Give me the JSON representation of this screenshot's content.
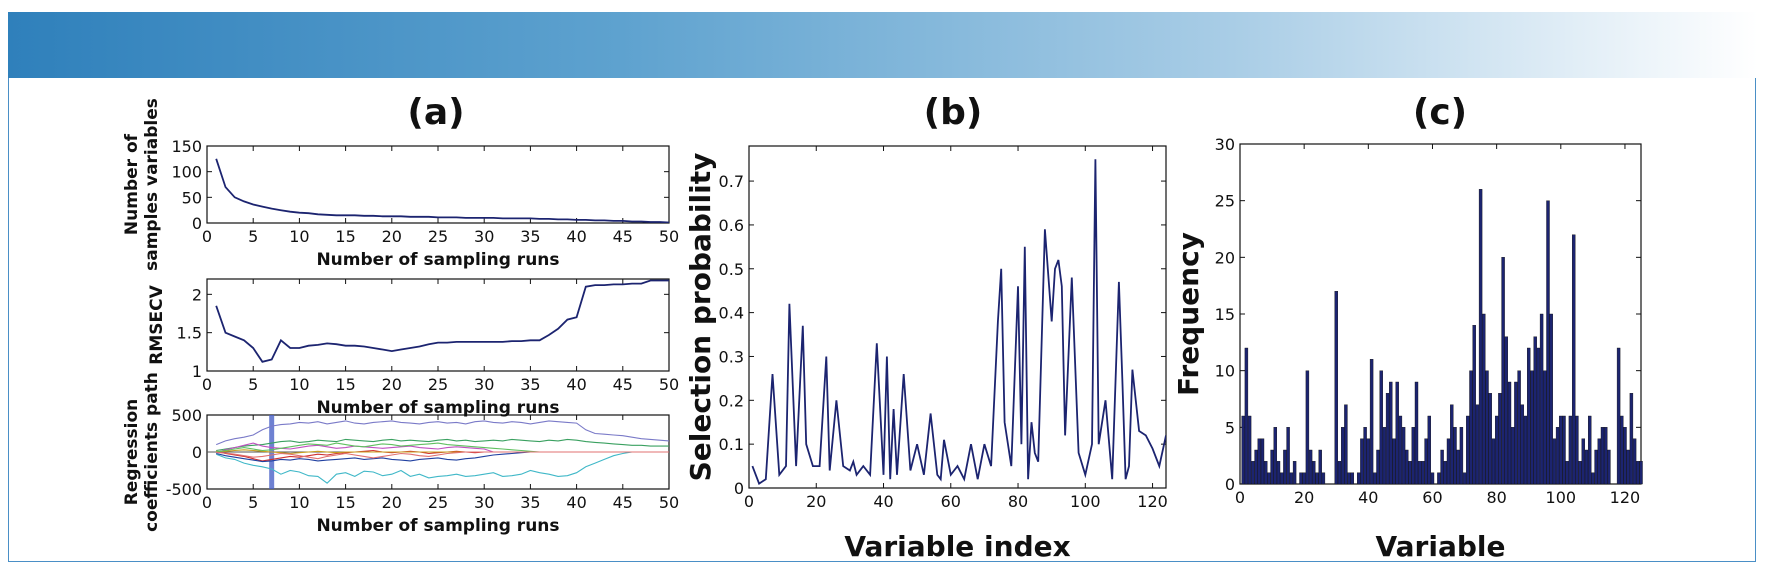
{
  "chart_data": [
    {
      "id": "a1",
      "panel_label": "(a)",
      "type": "line",
      "title": "",
      "xlabel": "Number of sampling runs",
      "ylabel": [
        "Number of",
        "samples variables"
      ],
      "xlim": [
        0,
        50
      ],
      "ylim": [
        0,
        150
      ],
      "xticks": [
        0,
        5,
        10,
        15,
        20,
        25,
        30,
        35,
        40,
        45,
        50
      ],
      "yticks": [
        0,
        50,
        100,
        150
      ],
      "x": [
        1,
        2,
        3,
        4,
        5,
        6,
        7,
        8,
        9,
        10,
        11,
        12,
        13,
        14,
        15,
        16,
        17,
        18,
        19,
        20,
        21,
        22,
        23,
        24,
        25,
        26,
        27,
        28,
        29,
        30,
        31,
        32,
        33,
        34,
        35,
        36,
        37,
        38,
        39,
        40,
        41,
        42,
        43,
        44,
        45,
        46,
        47,
        48,
        49,
        50
      ],
      "values": [
        125,
        70,
        50,
        42,
        36,
        32,
        28,
        25,
        22,
        20,
        19,
        17,
        16,
        15,
        15,
        15,
        14,
        14,
        13,
        13,
        13,
        12,
        12,
        12,
        11,
        11,
        11,
        10,
        10,
        10,
        10,
        9,
        9,
        9,
        9,
        8,
        8,
        7,
        7,
        6,
        6,
        5,
        5,
        4,
        4,
        3,
        3,
        2,
        2,
        1
      ]
    },
    {
      "id": "a2",
      "type": "line",
      "xlabel": "Number of sampling runs",
      "ylabel": [
        "RMSECV"
      ],
      "xlim": [
        0,
        50
      ],
      "ylim": [
        1,
        2.2
      ],
      "xticks": [
        0,
        5,
        10,
        15,
        20,
        25,
        30,
        35,
        40,
        45,
        50
      ],
      "yticks": [
        1,
        1.5,
        2
      ],
      "x": [
        1,
        2,
        3,
        4,
        5,
        6,
        7,
        8,
        9,
        10,
        11,
        12,
        13,
        14,
        15,
        16,
        17,
        18,
        19,
        20,
        21,
        22,
        23,
        24,
        25,
        26,
        27,
        28,
        29,
        30,
        31,
        32,
        33,
        34,
        35,
        36,
        37,
        38,
        39,
        40,
        41,
        42,
        43,
        44,
        45,
        46,
        47,
        48,
        49,
        50
      ],
      "values": [
        1.85,
        1.5,
        1.45,
        1.4,
        1.3,
        1.12,
        1.15,
        1.4,
        1.3,
        1.3,
        1.33,
        1.34,
        1.36,
        1.35,
        1.33,
        1.33,
        1.32,
        1.3,
        1.28,
        1.26,
        1.28,
        1.3,
        1.32,
        1.35,
        1.37,
        1.37,
        1.38,
        1.38,
        1.38,
        1.38,
        1.38,
        1.38,
        1.39,
        1.39,
        1.4,
        1.4,
        1.47,
        1.55,
        1.67,
        1.7,
        2.1,
        2.12,
        2.12,
        2.13,
        2.13,
        2.14,
        2.14,
        2.18,
        2.18,
        2.18
      ]
    },
    {
      "id": "a3",
      "type": "line",
      "xlabel": "Number of sampling runs",
      "ylabel": [
        "Regression",
        "coefficients path"
      ],
      "xlim": [
        0,
        50
      ],
      "ylim": [
        -500,
        500
      ],
      "xticks": [
        0,
        5,
        10,
        15,
        20,
        25,
        30,
        35,
        40,
        45,
        50
      ],
      "yticks": [
        -500,
        0,
        500
      ],
      "annotation": "vertical marker at x=7",
      "series": [
        {
          "name": "s1",
          "color": "#7a7ac8",
          "values": [
            100,
            150,
            180,
            200,
            230,
            300,
            350,
            370,
            380,
            400,
            390,
            410,
            380,
            400,
            420,
            390,
            380,
            400,
            410,
            420,
            400,
            390,
            380,
            400,
            410,
            390,
            400,
            380,
            410,
            420,
            400,
            390,
            410,
            400,
            380,
            400,
            420,
            410,
            400,
            390,
            300,
            250,
            240,
            230,
            220,
            200,
            180,
            170,
            160,
            150
          ]
        },
        {
          "name": "s2",
          "color": "#40b8c8",
          "values": [
            -30,
            -80,
            -100,
            -150,
            -180,
            -200,
            -230,
            -300,
            -250,
            -270,
            -320,
            -330,
            -420,
            -300,
            -280,
            -330,
            -260,
            -270,
            -320,
            -300,
            -250,
            -330,
            -300,
            -350,
            -330,
            -320,
            -300,
            -330,
            -320,
            -300,
            -280,
            -330,
            -320,
            -300,
            -250,
            -280,
            -300,
            -330,
            -320,
            -280,
            -200,
            -150,
            -100,
            -50,
            -20,
            0,
            0,
            0,
            0,
            0
          ]
        },
        {
          "name": "s3",
          "color": "#3aa060",
          "values": [
            20,
            40,
            60,
            80,
            90,
            100,
            120,
            140,
            150,
            130,
            140,
            160,
            150,
            140,
            170,
            160,
            150,
            140,
            160,
            170,
            150,
            160,
            150,
            140,
            160,
            170,
            150,
            160,
            140,
            150,
            160,
            150,
            170,
            160,
            150,
            140,
            160,
            150,
            170,
            160,
            140,
            130,
            120,
            110,
            100,
            90,
            90,
            80,
            80,
            80
          ]
        },
        {
          "name": "s4",
          "color": "#d03030",
          "values": [
            10,
            -20,
            -40,
            -60,
            -90,
            -120,
            -100,
            -80,
            -60,
            -70,
            -50,
            -30,
            -40,
            -20,
            -10,
            0,
            10,
            20,
            0,
            -10,
            0,
            10,
            0,
            -20,
            -10,
            0,
            10,
            0,
            -10,
            0,
            0,
            0,
            0,
            0,
            0,
            0,
            0,
            0,
            0,
            0,
            0,
            0,
            0,
            0,
            0,
            0,
            0,
            0,
            0,
            0
          ]
        },
        {
          "name": "s5",
          "color": "#c050c0",
          "values": [
            -10,
            30,
            60,
            90,
            120,
            80,
            60,
            50,
            40,
            60,
            80,
            90,
            70,
            50,
            60,
            80,
            70,
            60,
            50,
            60,
            70,
            80,
            60,
            50,
            40,
            60,
            70,
            60,
            50,
            40,
            0,
            0,
            0,
            0,
            0,
            0,
            0,
            0,
            0,
            0,
            0,
            0,
            0,
            0,
            0,
            0,
            0,
            0,
            0,
            0
          ]
        },
        {
          "name": "s6",
          "color": "#c8a020",
          "values": [
            5,
            10,
            20,
            30,
            20,
            10,
            0,
            -10,
            -20,
            -10,
            0,
            10,
            0,
            -10,
            0,
            0,
            0,
            0,
            0,
            0,
            0,
            0,
            0,
            0,
            0,
            0,
            0,
            0,
            0,
            0,
            0,
            0,
            0,
            0,
            0,
            0,
            0,
            0,
            0,
            0,
            0,
            0,
            0,
            0,
            0,
            0,
            0,
            0,
            0,
            0
          ]
        },
        {
          "name": "s7",
          "color": "#2040a0",
          "values": [
            -20,
            -50,
            -70,
            -90,
            -110,
            -130,
            -120,
            -100,
            -110,
            -90,
            -100,
            -120,
            -110,
            -100,
            -90,
            -80,
            -100,
            -90,
            -80,
            -100,
            -110,
            -120,
            -100,
            -90,
            -80,
            -100,
            -110,
            -90,
            -80,
            -60,
            -40,
            -30,
            -20,
            -10,
            0,
            0,
            0,
            0,
            0,
            0,
            0,
            0,
            0,
            0,
            0,
            0,
            0,
            0,
            0,
            0
          ]
        },
        {
          "name": "s8",
          "color": "#60c060",
          "values": [
            0,
            20,
            40,
            60,
            40,
            20,
            30,
            50,
            70,
            90,
            110,
            100,
            90,
            120,
            100,
            80,
            70,
            90,
            110,
            100,
            80,
            90,
            100,
            110,
            120,
            100,
            90,
            80,
            70,
            60,
            50,
            40,
            30,
            20,
            10,
            0,
            0,
            0,
            0,
            0,
            0,
            0,
            0,
            0,
            0,
            0,
            0,
            0,
            0,
            0
          ]
        },
        {
          "name": "s9",
          "color": "#e07070",
          "values": [
            -5,
            -15,
            -30,
            -50,
            -70,
            -60,
            -40,
            -20,
            -30,
            -50,
            -70,
            -90,
            -60,
            -40,
            -20,
            -40,
            -60,
            -80,
            -60,
            -40,
            -20,
            -30,
            -50,
            -60,
            -40,
            -20,
            -10,
            0,
            0,
            0,
            0,
            0,
            0,
            0,
            0,
            0,
            0,
            0,
            0,
            0,
            0,
            0,
            0,
            0,
            0,
            0,
            0,
            0,
            0,
            0
          ]
        }
      ]
    },
    {
      "id": "b",
      "panel_label": "(b)",
      "type": "line",
      "xlabel": "Variable index",
      "ylabel": "Selection probability",
      "xlim": [
        0,
        124
      ],
      "ylim": [
        0,
        0.78
      ],
      "xticks": [
        0,
        20,
        40,
        60,
        80,
        100,
        120
      ],
      "yticks": [
        0,
        0.1,
        0.2,
        0.3,
        0.4,
        0.5,
        0.6,
        0.7
      ],
      "x": [
        1,
        3,
        5,
        7,
        9,
        11,
        12,
        14,
        16,
        17,
        19,
        21,
        23,
        24,
        26,
        28,
        30,
        31,
        32,
        34,
        36,
        38,
        40,
        41,
        42,
        43,
        44,
        46,
        48,
        50,
        52,
        54,
        56,
        57,
        58,
        60,
        62,
        64,
        66,
        68,
        70,
        72,
        74,
        75,
        76,
        78,
        80,
        81,
        82,
        83,
        84,
        85,
        86,
        88,
        90,
        91,
        92,
        93,
        94,
        96,
        98,
        100,
        102,
        103,
        104,
        106,
        108,
        110,
        111,
        112,
        113,
        114,
        116,
        118,
        120,
        122,
        124
      ],
      "values": [
        0.05,
        0.01,
        0.02,
        0.26,
        0.03,
        0.05,
        0.42,
        0.05,
        0.37,
        0.1,
        0.05,
        0.05,
        0.3,
        0.04,
        0.2,
        0.05,
        0.04,
        0.06,
        0.03,
        0.05,
        0.03,
        0.33,
        0.03,
        0.3,
        0.02,
        0.18,
        0.03,
        0.26,
        0.04,
        0.1,
        0.03,
        0.17,
        0.03,
        0.02,
        0.11,
        0.03,
        0.05,
        0.02,
        0.1,
        0.02,
        0.1,
        0.05,
        0.38,
        0.5,
        0.15,
        0.05,
        0.46,
        0.1,
        0.55,
        0.02,
        0.15,
        0.08,
        0.06,
        0.59,
        0.38,
        0.5,
        0.52,
        0.46,
        0.12,
        0.48,
        0.08,
        0.03,
        0.1,
        0.75,
        0.1,
        0.2,
        0.02,
        0.47,
        0.25,
        0.02,
        0.05,
        0.27,
        0.13,
        0.12,
        0.09,
        0.05,
        0.12
      ]
    },
    {
      "id": "c",
      "panel_label": "(c)",
      "type": "bar",
      "xlabel": "Variable",
      "ylabel": "Frequency",
      "xlim": [
        0,
        125
      ],
      "ylim": [
        0,
        30
      ],
      "xticks": [
        0,
        20,
        40,
        60,
        80,
        100,
        120
      ],
      "yticks": [
        0,
        5,
        10,
        15,
        20,
        25,
        30
      ],
      "values": [
        6,
        12,
        6,
        2,
        3,
        4,
        4,
        2,
        1,
        3,
        5,
        2,
        1,
        3,
        5,
        1,
        2,
        0,
        1,
        1,
        10,
        3,
        2,
        1,
        3,
        1,
        0,
        0,
        0,
        17,
        2,
        5,
        7,
        1,
        1,
        0,
        1,
        4,
        5,
        4,
        11,
        1,
        3,
        10,
        5,
        8,
        9,
        4,
        9,
        6,
        5,
        3,
        2,
        5,
        9,
        2,
        2,
        4,
        6,
        1,
        0,
        1,
        3,
        2,
        4,
        7,
        5,
        3,
        5,
        1,
        6,
        10,
        14,
        7,
        26,
        15,
        10,
        8,
        4,
        6,
        8,
        20,
        13,
        9,
        5,
        9,
        10,
        7,
        6,
        12,
        10,
        13,
        12,
        15,
        10,
        25,
        15,
        4,
        5,
        6,
        6,
        2,
        6,
        22,
        6,
        2,
        4,
        3,
        6,
        1,
        3,
        4,
        5,
        5,
        3,
        0,
        0,
        12,
        6,
        5,
        3,
        8,
        4,
        2,
        2
      ]
    }
  ]
}
